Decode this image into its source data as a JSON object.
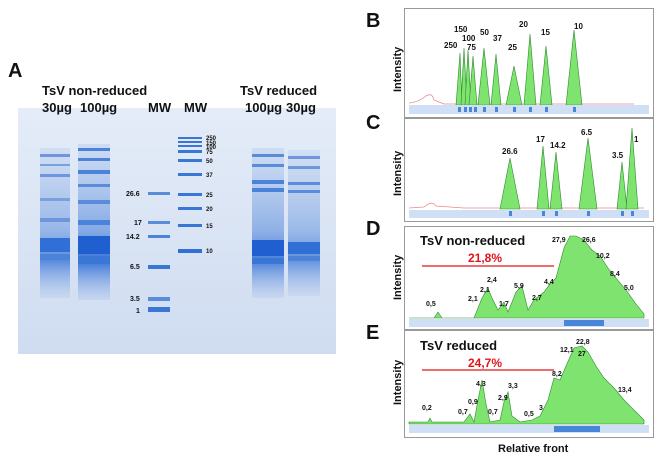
{
  "panels": {
    "A": {
      "letter": "A",
      "title_left": "TsV non-reduced",
      "title_right": "TsV reduced",
      "lane_labels": [
        "30µg",
        "100µg",
        "MW",
        "MW",
        "100µg",
        "30µg"
      ],
      "mw_left": [
        "26.6",
        "17",
        "14.2",
        "6.5",
        "3.5",
        "1"
      ],
      "mw_right": [
        "250",
        "150",
        "100",
        "75",
        "50",
        "37",
        "25",
        "20",
        "15",
        "10"
      ]
    },
    "B": {
      "letter": "B",
      "ylabel": "Intensity",
      "peak_labels": [
        "250",
        "150",
        "100",
        "75",
        "50",
        "37",
        "25",
        "20",
        "15",
        "10"
      ]
    },
    "C": {
      "letter": "C",
      "ylabel": "Intensity",
      "peak_labels": [
        "26.6",
        "17",
        "14.2",
        "6.5",
        "3.5",
        "1"
      ]
    },
    "D": {
      "letter": "D",
      "ylabel": "Intensity",
      "title": "TsV non-reduced",
      "percent": "21,8%",
      "peak_labels": [
        "0,5",
        "2,1",
        "2,1",
        "2,4",
        "1,7",
        "5,9",
        "2,7",
        "4,4",
        "27,9",
        "26,6",
        "10,2",
        "8,4",
        "5,0"
      ]
    },
    "E": {
      "letter": "E",
      "ylabel": "Intensity",
      "title": "TsV reduced",
      "percent": "24,7%",
      "peak_labels": [
        "0,2",
        "0,7",
        "0,9",
        "4,3",
        "0,7",
        "2,9",
        "3,3",
        "0,5",
        "3",
        "8,2",
        "12,1",
        "22,8",
        "27",
        "13,4"
      ]
    }
  },
  "xaxis_title": "Relative front",
  "colors": {
    "gel_bg": "#d7e3f3",
    "band": "#2f6fd6",
    "peak_fill": "#7ee36f",
    "peak_stroke": "#2e8b2e",
    "percent": "#e0141b",
    "stripe": "#4a86d8"
  }
}
